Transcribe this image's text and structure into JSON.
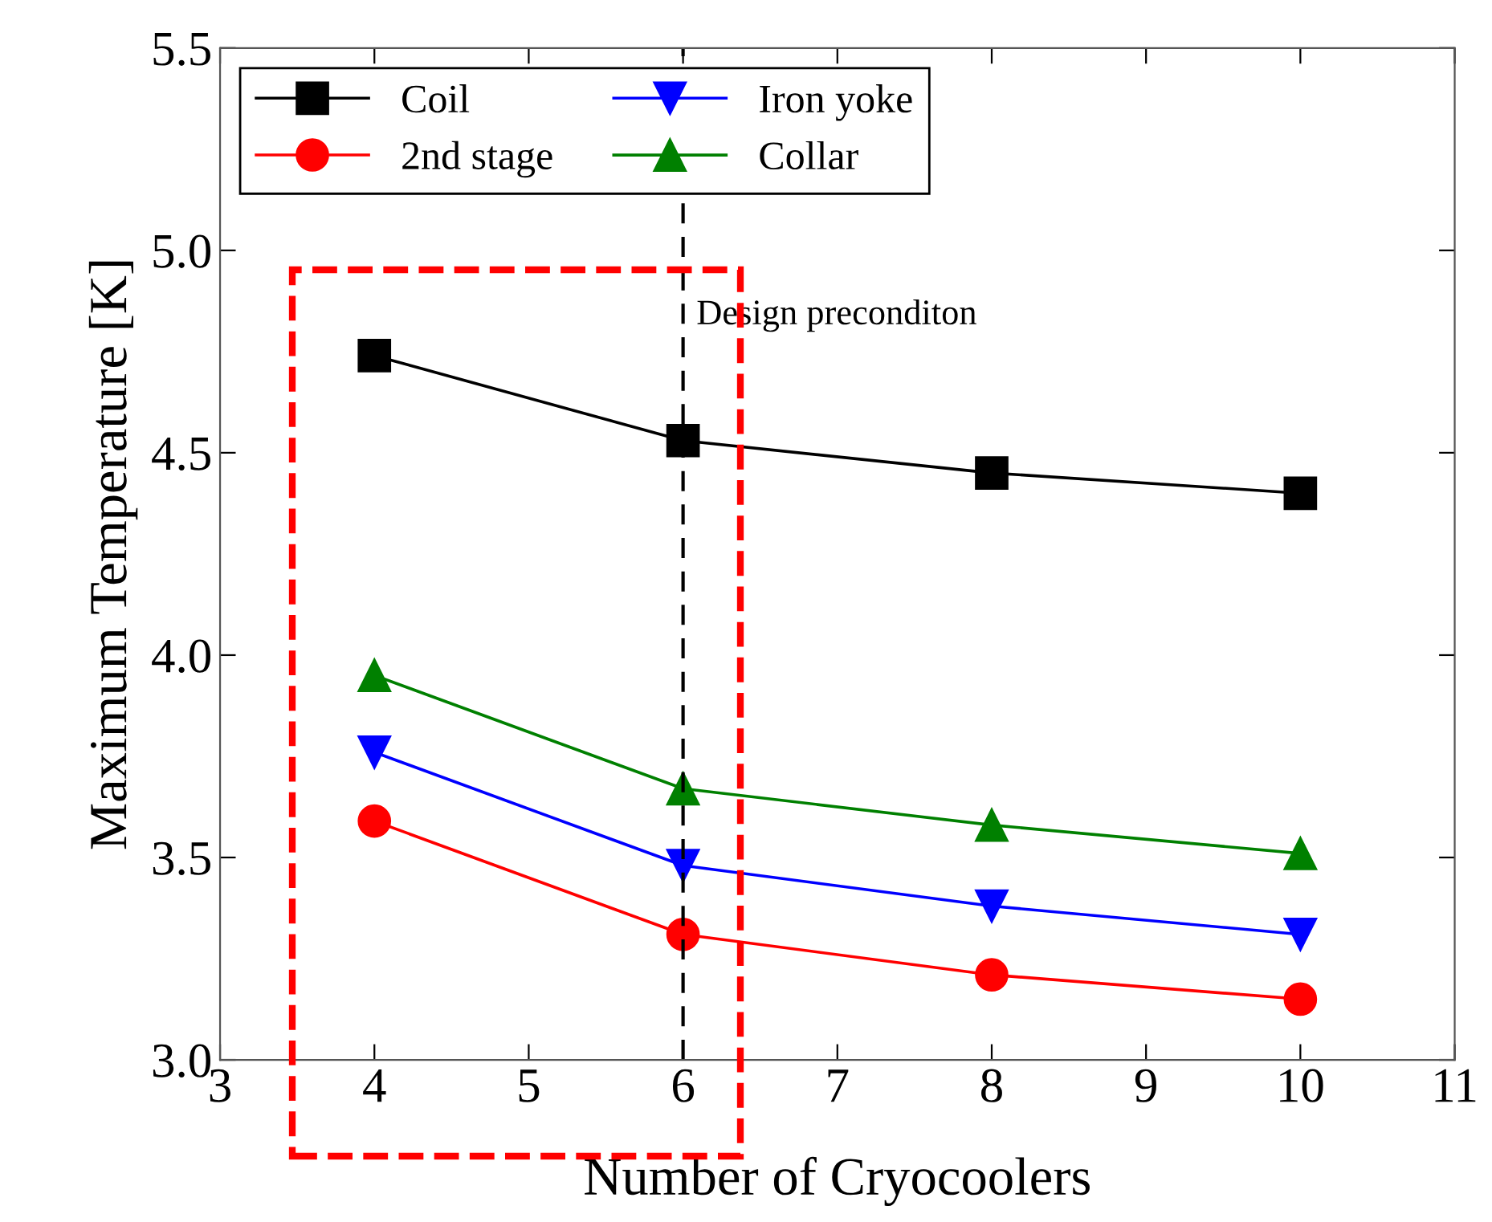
{
  "chart_data": {
    "type": "line",
    "xlabel": "Number of Cryocoolers",
    "ylabel": "Maximum Temperature [K]",
    "x": [
      4,
      6,
      8,
      10
    ],
    "series": [
      {
        "name": "Coil",
        "color": "#000000",
        "marker": "square",
        "values": [
          4.74,
          4.53,
          4.45,
          4.4
        ]
      },
      {
        "name": "2nd stage",
        "color": "#ff0000",
        "marker": "circle",
        "values": [
          3.59,
          3.31,
          3.21,
          3.15
        ]
      },
      {
        "name": "Iron yoke",
        "color": "#0000ff",
        "marker": "triangle_down",
        "values": [
          3.76,
          3.48,
          3.38,
          3.31
        ]
      },
      {
        "name": "Collar",
        "color": "#008000",
        "marker": "triangle",
        "values": [
          3.95,
          3.67,
          3.58,
          3.51
        ]
      }
    ],
    "xlim": [
      3,
      11
    ],
    "xticks": [
      3,
      4,
      5,
      6,
      7,
      8,
      9,
      10,
      11
    ],
    "ylim": [
      3.0,
      5.5
    ],
    "yticks": [
      {
        "value": 3.0,
        "label": "3.0"
      },
      {
        "value": 3.5,
        "label": "3.5"
      },
      {
        "value": 4.0,
        "label": "4.0"
      },
      {
        "value": 4.5,
        "label": "4.5"
      },
      {
        "value": 5.0,
        "label": "5.0"
      },
      {
        "value": 5.5,
        "label": "5.5"
      }
    ],
    "ref_lines": [
      {
        "axis": "x",
        "value": 6,
        "label": "Design preconditon",
        "color": "#000000",
        "line_style": "dashed"
      }
    ],
    "grid": false,
    "legend": "top left",
    "line_style": "solid"
  }
}
